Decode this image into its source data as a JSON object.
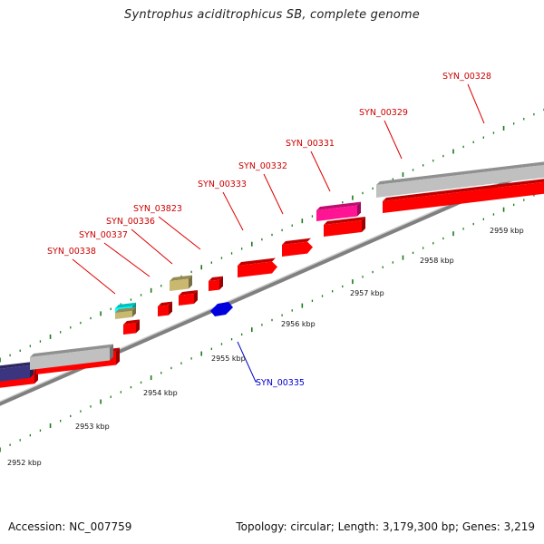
{
  "title": "Syntrophus aciditrophicus SB, complete genome",
  "footer": {
    "accession": "Accession: NC_007759",
    "summary": "Topology: circular; Length: 3,179,300 bp; Genes: 3,219"
  },
  "colors": {
    "forward_gene": "#ff0000",
    "reverse_gene": "#0000dd",
    "pseudogene": "#c0c0c0",
    "rna": "#ff1493",
    "misc": "#c8b870",
    "trna": "#00ffff",
    "operon": "#3b3580",
    "backbone": "#808080",
    "tick": "#1a7a1a",
    "forward_label": "#cc0000",
    "reverse_label": "#0000cc"
  },
  "scale_labels": [
    "2952 kbp",
    "2953 kbp",
    "2954 kbp",
    "2955 kbp",
    "2956 kbp",
    "2957 kbp",
    "2958 kbp",
    "2959 kbp"
  ],
  "gene_labels": [
    {
      "id": "SYN_00328",
      "strand": "forward"
    },
    {
      "id": "SYN_00329",
      "strand": "forward"
    },
    {
      "id": "SYN_00331",
      "strand": "forward"
    },
    {
      "id": "SYN_00332",
      "strand": "forward"
    },
    {
      "id": "SYN_00333",
      "strand": "forward"
    },
    {
      "id": "SYN_03823",
      "strand": "forward"
    },
    {
      "id": "SYN_00336",
      "strand": "forward"
    },
    {
      "id": "SYN_00337",
      "strand": "forward"
    },
    {
      "id": "SYN_00338",
      "strand": "forward"
    },
    {
      "id": "SYN_00335",
      "strand": "reverse"
    }
  ]
}
